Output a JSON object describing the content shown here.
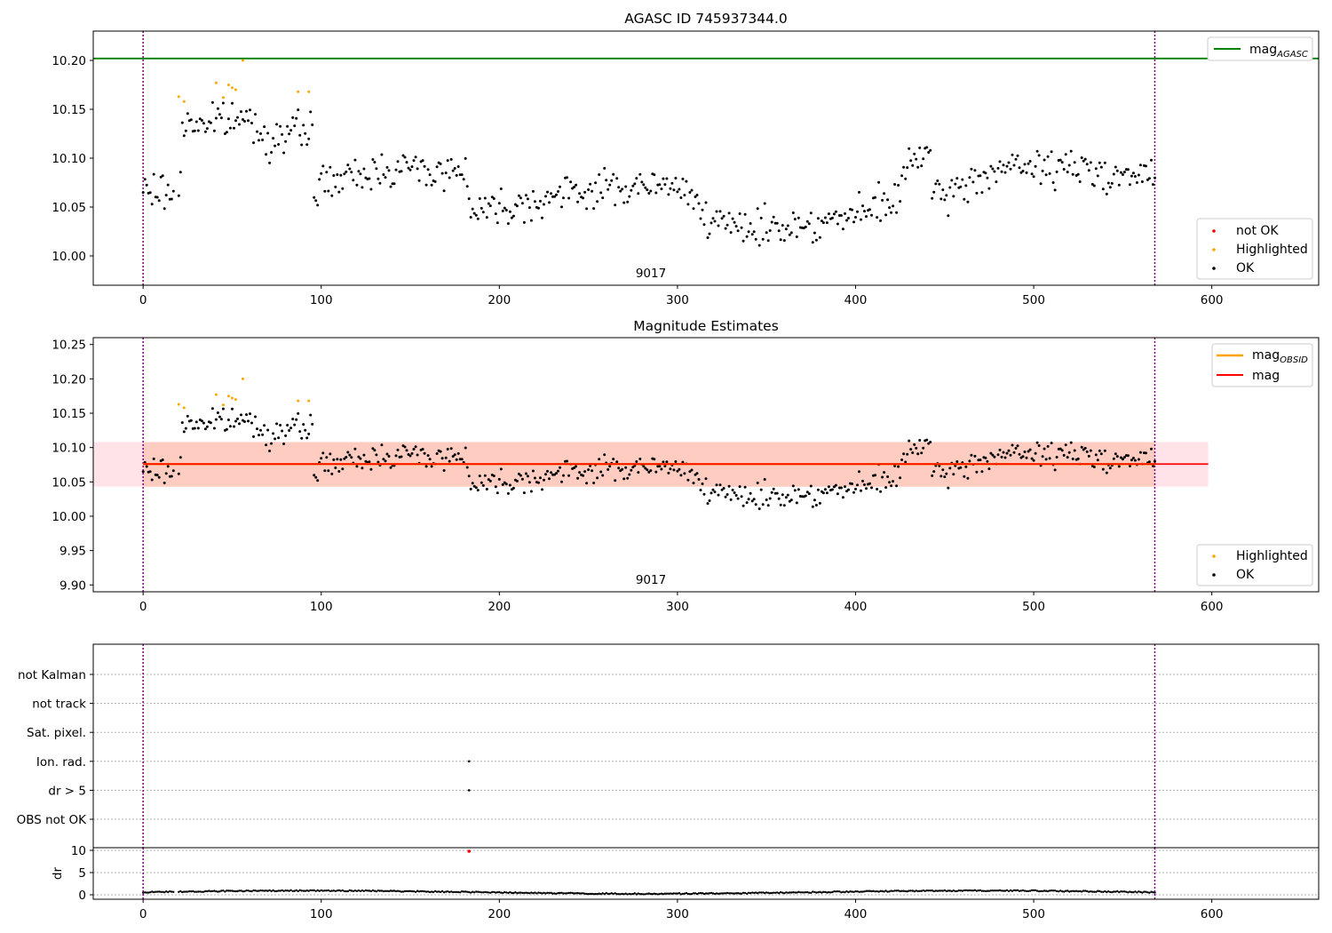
{
  "figure": {
    "title": "AGASC ID 745937344.0",
    "middle_title": "Magnitude Estimates"
  },
  "chart_data": [
    {
      "type": "scatter",
      "panel": "top",
      "title": "AGASC ID 745937344.0",
      "xlabel": "",
      "ylabel": "",
      "xlim": [
        -28,
        660
      ],
      "ylim": [
        9.97,
        10.23
      ],
      "xticks": [
        0,
        100,
        200,
        300,
        400,
        500,
        600
      ],
      "yticks": [
        10.0,
        10.05,
        10.1,
        10.15,
        10.2
      ],
      "ytick_labels": [
        "10.00",
        "10.05",
        "10.10",
        "10.15",
        "10.20"
      ],
      "obsid_boundaries": [
        0,
        568
      ],
      "obsid_label": {
        "text": "9017",
        "x": 284
      },
      "hlines": [
        {
          "name_main": "mag",
          "name_sub": "AGASC",
          "value": 10.202,
          "color": "#008000"
        }
      ],
      "series": [
        {
          "name": "not OK",
          "color": "#ff0000",
          "values": []
        },
        {
          "name": "Highlighted",
          "color": "#ffa500",
          "x": [
            20,
            23,
            41,
            45,
            48,
            50,
            52,
            56,
            87,
            93
          ],
          "values": [
            10.163,
            10.158,
            10.177,
            10.162,
            10.175,
            10.172,
            10.17,
            10.2,
            10.168,
            10.168
          ]
        },
        {
          "name": "OK",
          "color": "#000000",
          "n": 565,
          "trend": "computed"
        }
      ],
      "legend_upper": {
        "position": "top-right"
      },
      "legend_lower": {
        "position": "bottom-right"
      }
    },
    {
      "type": "scatter",
      "panel": "middle",
      "title": "Magnitude Estimates",
      "xlabel": "",
      "ylabel": "",
      "xlim": [
        -28,
        660
      ],
      "ylim": [
        9.89,
        10.26
      ],
      "xticks": [
        0,
        100,
        200,
        300,
        400,
        500,
        600
      ],
      "yticks": [
        9.9,
        9.95,
        10.0,
        10.05,
        10.1,
        10.15,
        10.2,
        10.25
      ],
      "ytick_labels": [
        "9.90",
        "9.95",
        "10.00",
        "10.05",
        "10.10",
        "10.15",
        "10.20",
        "10.25"
      ],
      "obsid_boundaries": [
        0,
        568
      ],
      "obsid_label": {
        "text": "9017",
        "x": 284
      },
      "hlines": [
        {
          "name_main": "mag",
          "name_sub": "OBSID",
          "value": 10.076,
          "color": "#ffa500"
        },
        {
          "name_main": "mag",
          "name_sub": "",
          "value": 10.076,
          "color": "#ff0000"
        }
      ],
      "bands": [
        {
          "x": [
            -28,
            598
          ],
          "y": [
            10.043,
            10.108
          ],
          "color": "#ffc0cb"
        },
        {
          "x": [
            0,
            568
          ],
          "y": [
            10.043,
            10.108
          ],
          "color": "#ffa07a"
        }
      ],
      "series": [
        {
          "name": "Highlighted",
          "color": "#ffa500"
        },
        {
          "name": "OK",
          "color": "#000000"
        }
      ],
      "legend_upper": {
        "position": "top-right"
      },
      "legend_lower": {
        "position": "bottom-right"
      }
    },
    {
      "type": "scatter",
      "panel": "flags",
      "xlim": [
        -28,
        660
      ],
      "categories": [
        "not Kalman",
        "not track",
        "Sat. pixel.",
        "Ion. rad.",
        "dr > 5",
        "OBS not OK"
      ],
      "flag_points": [
        {
          "category": "Ion. rad.",
          "x": [
            183
          ]
        },
        {
          "category": "dr > 5",
          "x": [
            183
          ]
        }
      ],
      "obsid_boundaries": [
        0,
        568
      ]
    },
    {
      "type": "scatter",
      "panel": "dr",
      "ylabel": "dr",
      "xlim": [
        -28,
        660
      ],
      "ylim": [
        -1,
        10.6
      ],
      "xticks": [
        0,
        100,
        200,
        300,
        400,
        500,
        600
      ],
      "yticks": [
        0,
        5,
        10
      ],
      "highlight_point": {
        "x": 183,
        "value": 9.8,
        "color": "#ff0000"
      },
      "obsid_boundaries": [
        0,
        568
      ]
    }
  ]
}
